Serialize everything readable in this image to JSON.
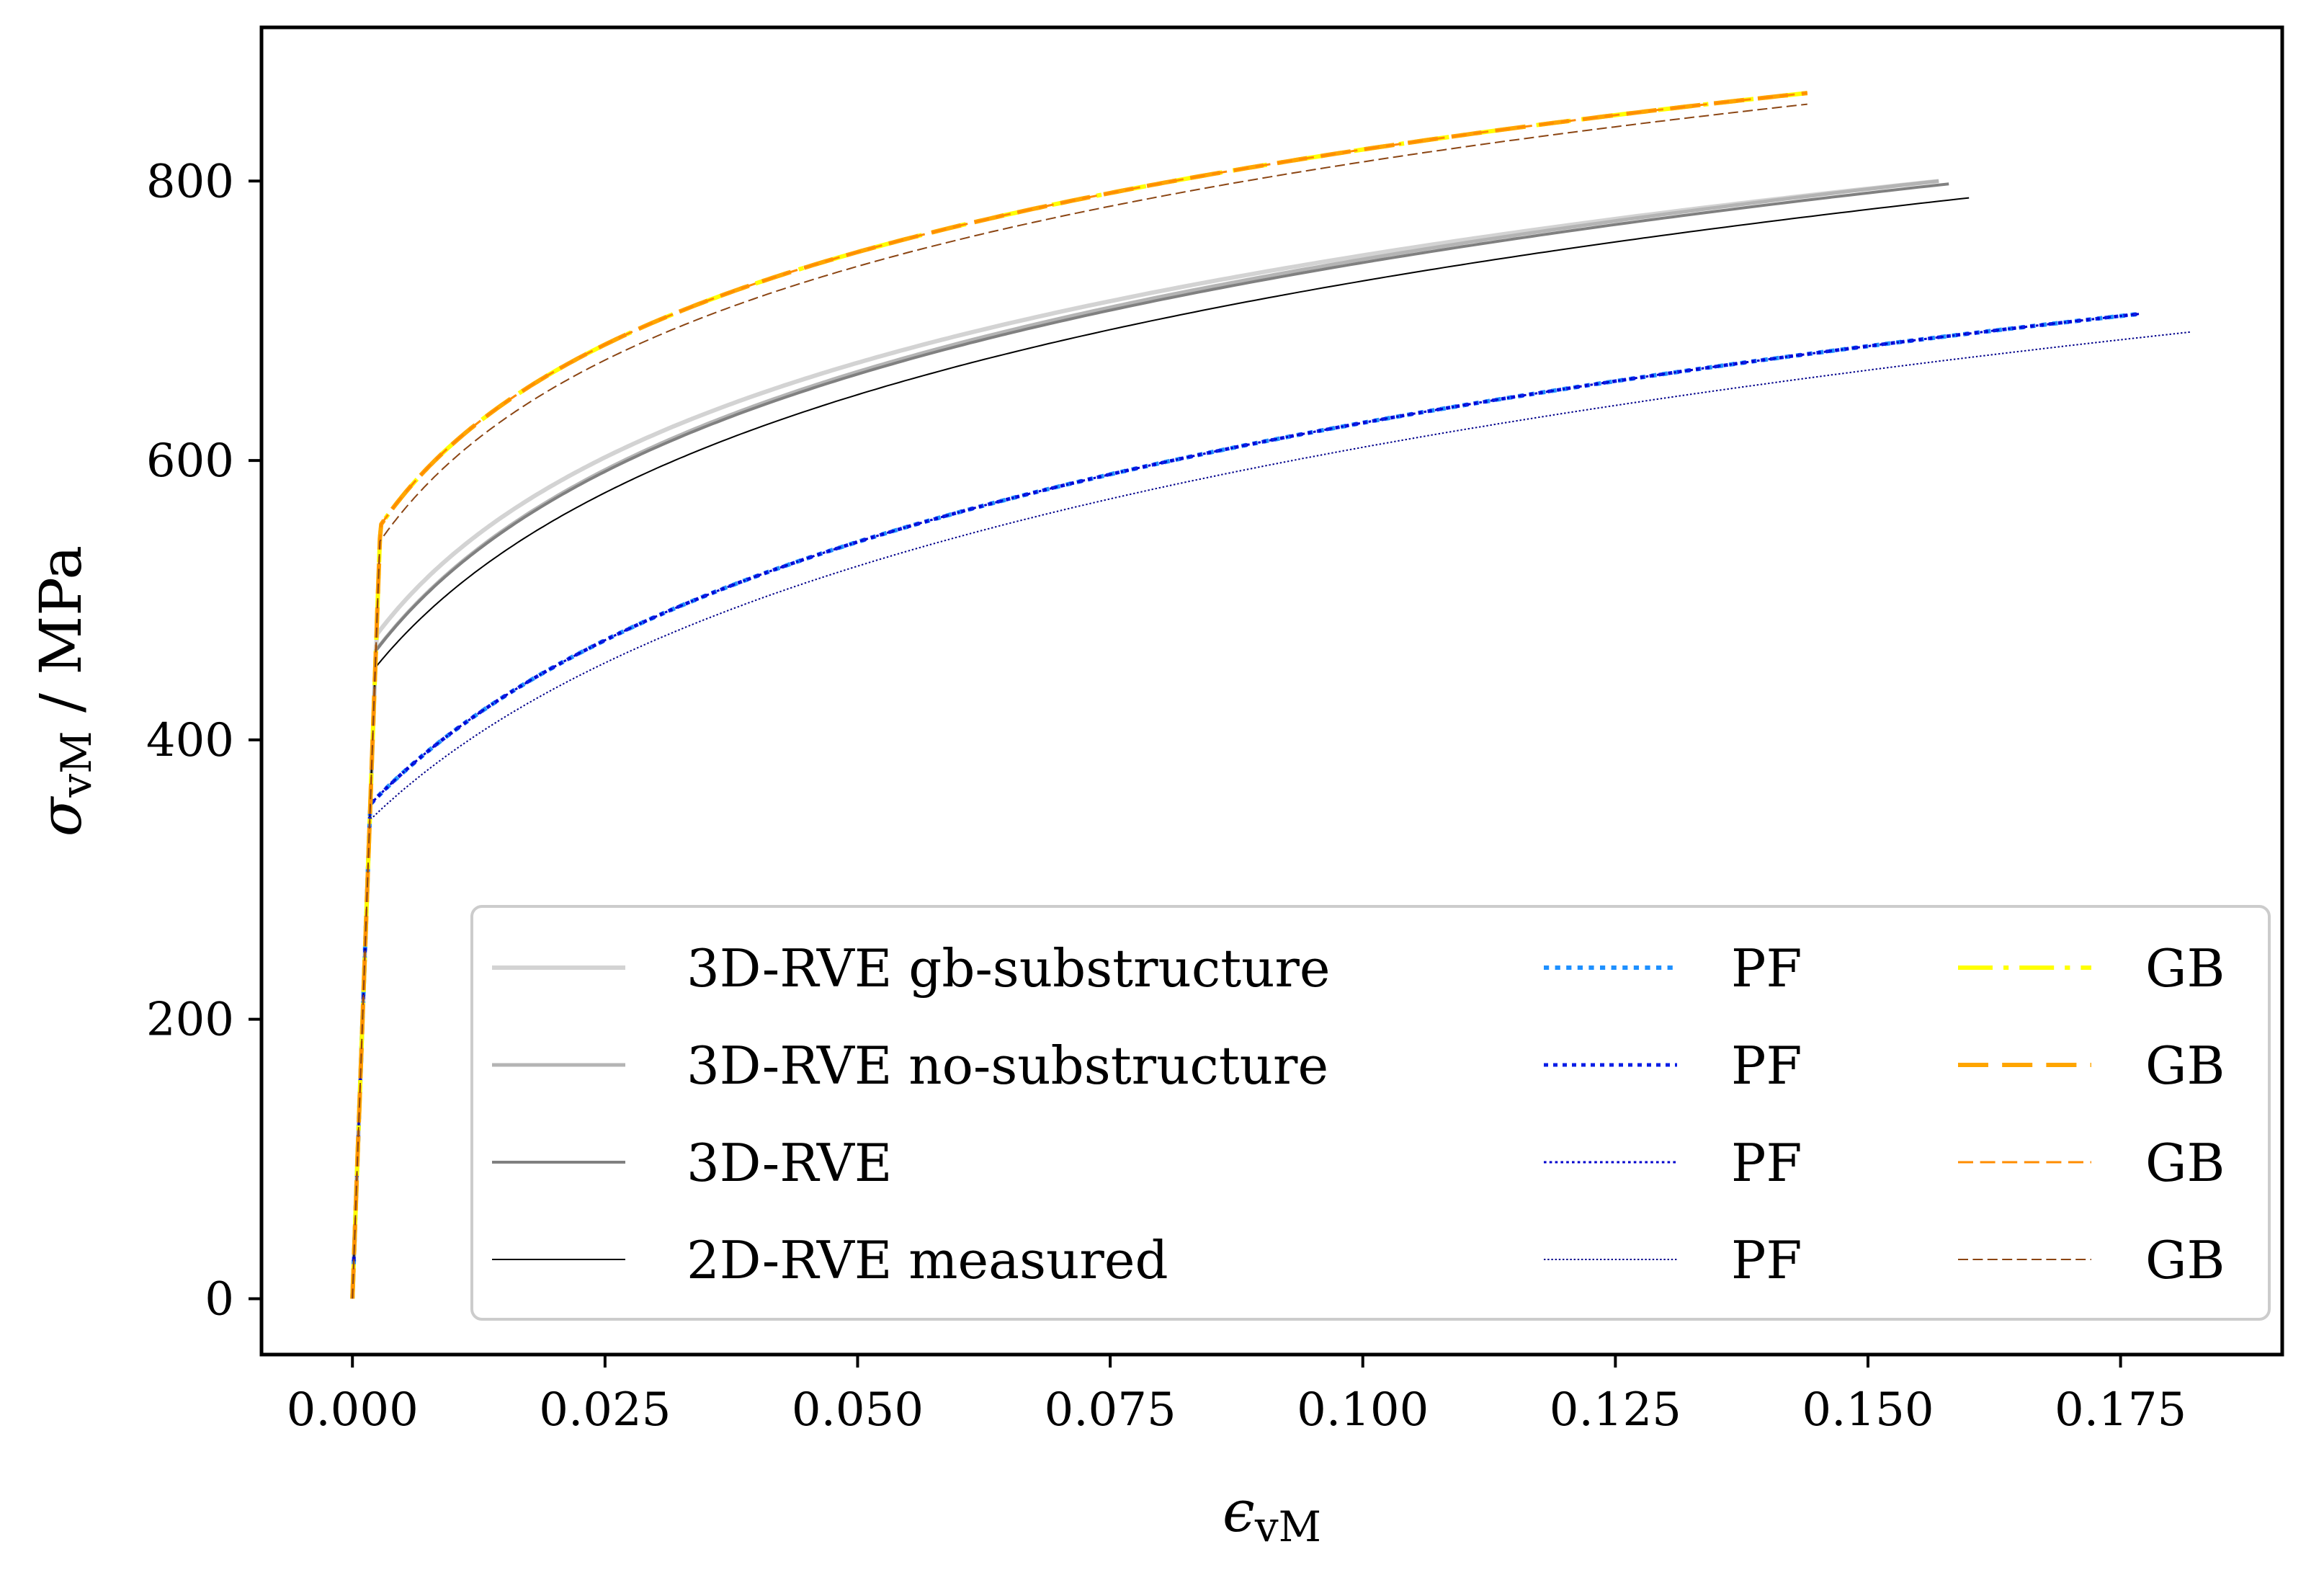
{
  "chart_data": {
    "type": "line",
    "title": "",
    "xlabel": {
      "symbol": "ϵ",
      "subscript": "vM"
    },
    "ylabel": {
      "symbol": "σ",
      "subscript": "vM",
      "suffix": " / MPa"
    },
    "xlim": [
      -0.009,
      0.191
    ],
    "ylim": [
      -40,
      910
    ],
    "xticks": [
      0.0,
      0.025,
      0.05,
      0.075,
      0.1,
      0.125,
      0.15,
      0.175
    ],
    "xtick_labels": [
      "0.000",
      "0.025",
      "0.050",
      "0.075",
      "0.100",
      "0.125",
      "0.150",
      "0.175"
    ],
    "yticks": [
      0,
      200,
      400,
      600,
      800
    ],
    "ytick_labels": [
      "0",
      "200",
      "400",
      "600",
      "800"
    ],
    "grid": false,
    "legend_position": "bottom-right",
    "legend_columns": 3,
    "series": [
      {
        "name": "3D-RVE gb-substructure",
        "color": "#d3d3d3",
        "style": "solid",
        "width": 6,
        "sigma_y": 450,
        "sigma_max": 800,
        "eps0": 0.011,
        "eps_max": 0.157
      },
      {
        "name": "3D-RVE no-substructure",
        "color": "#b4b4b4",
        "style": "solid",
        "width": 5,
        "sigma_y": 440,
        "sigma_max": 800,
        "eps0": 0.012,
        "eps_max": 0.157
      },
      {
        "name": "3D-RVE",
        "color": "#808080",
        "style": "solid",
        "width": 4,
        "sigma_y": 440,
        "sigma_max": 798,
        "eps0": 0.012,
        "eps_max": 0.158
      },
      {
        "name": "2D-RVE measured",
        "color": "#000000",
        "style": "solid",
        "width": 2,
        "sigma_y": 430,
        "sigma_max": 788,
        "eps0": 0.0135,
        "eps_max": 0.16
      },
      {
        "name": "PF",
        "color": "#1e90ff",
        "style": "dotted",
        "width": 6,
        "sigma_y": 340,
        "sigma_max": 705,
        "eps0": 0.019,
        "eps_max": 0.177
      },
      {
        "name": "PF",
        "color": "#0a1ee6",
        "style": "dotted",
        "width": 5,
        "sigma_y": 340,
        "sigma_max": 705,
        "eps0": 0.019,
        "eps_max": 0.177
      },
      {
        "name": "PF",
        "color": "#0000cd",
        "style": "dotted",
        "width": 3,
        "sigma_y": 340,
        "sigma_max": 705,
        "eps0": 0.019,
        "eps_max": 0.177
      },
      {
        "name": "PF",
        "color": "#00008b",
        "style": "dotted",
        "width": 2,
        "sigma_y": 330,
        "sigma_max": 692,
        "eps0": 0.021,
        "eps_max": 0.182
      },
      {
        "name": "GB",
        "color": "#ffff00",
        "style": "dashdot",
        "width": 6,
        "sigma_y": 520,
        "sigma_max": 863,
        "eps0": 0.0085,
        "eps_max": 0.144
      },
      {
        "name": "GB",
        "color": "#ffa500",
        "style": "dashed",
        "width": 6,
        "sigma_y": 520,
        "sigma_max": 863,
        "eps0": 0.0085,
        "eps_max": 0.144
      },
      {
        "name": "GB",
        "color": "#ff8c00",
        "style": "dashed",
        "width": 3,
        "sigma_y": 520,
        "sigma_max": 863,
        "eps0": 0.0085,
        "eps_max": 0.144
      },
      {
        "name": "GB",
        "color": "#8b4513",
        "style": "dashed",
        "width": 2,
        "sigma_y": 510,
        "sigma_max": 855,
        "eps0": 0.009,
        "eps_max": 0.144
      }
    ]
  }
}
